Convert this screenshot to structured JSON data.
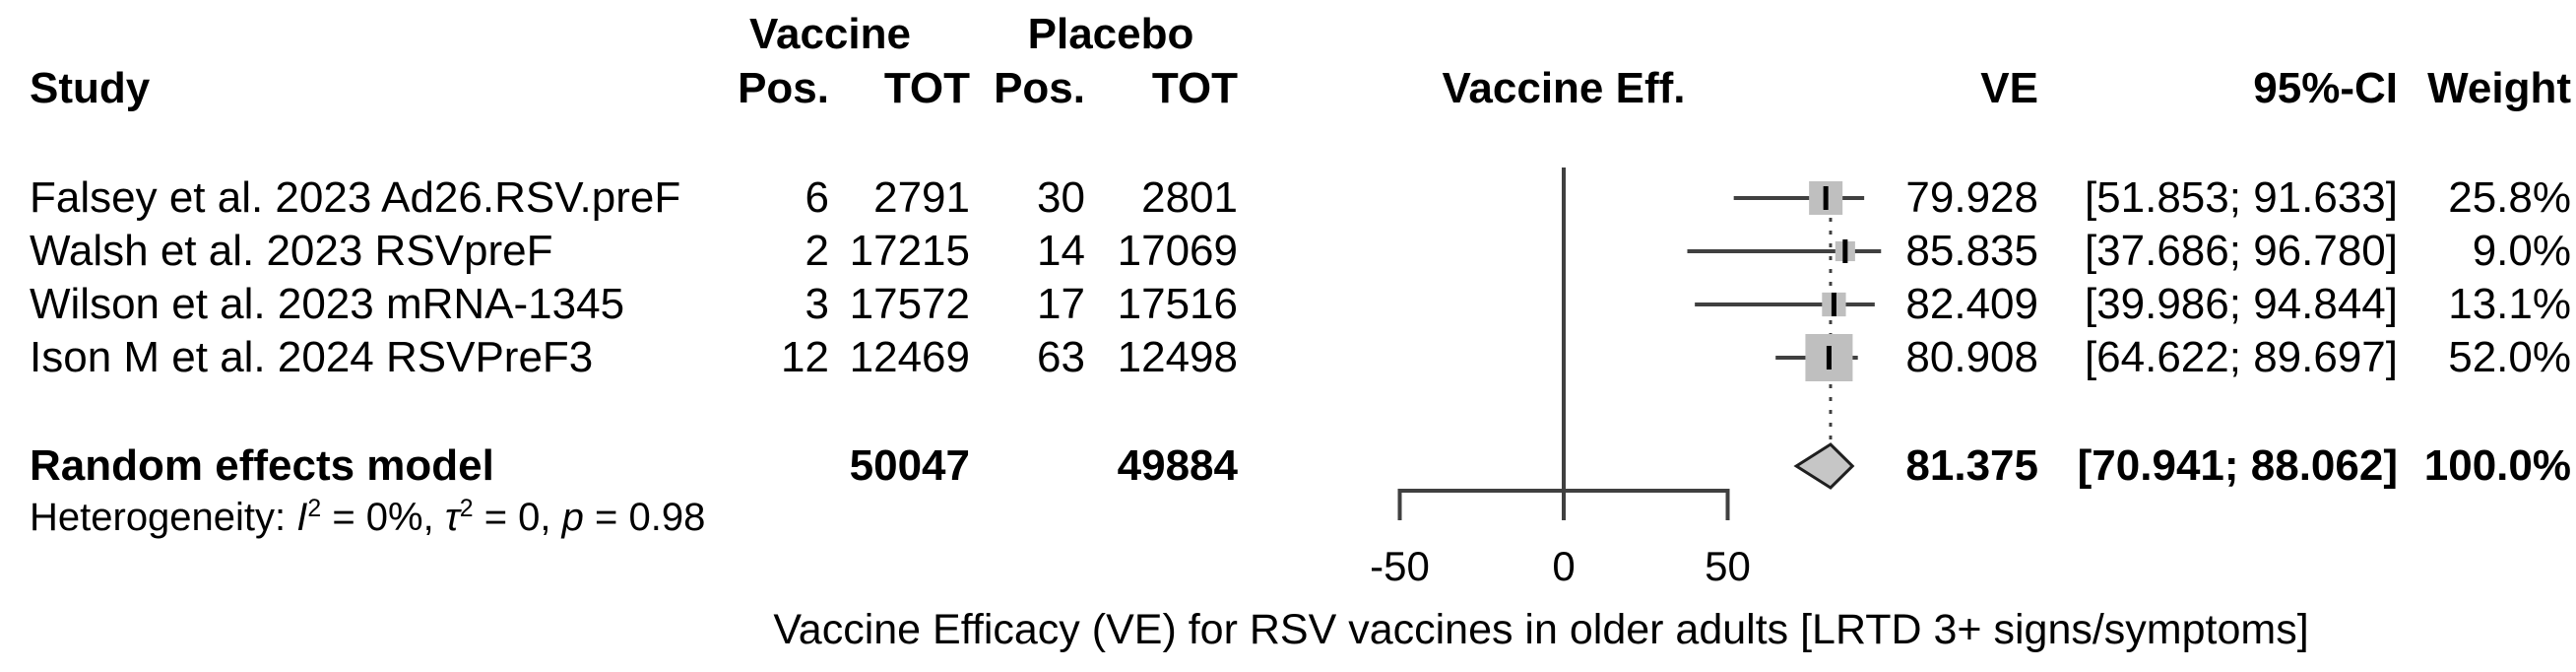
{
  "header": {
    "study": "Study",
    "vaccine_group": "Vaccine",
    "placebo_group": "Placebo",
    "pos": "Pos.",
    "tot": "TOT",
    "vaccine_eff": "Vaccine Eff.",
    "ve": "VE",
    "ci": "95%-CI",
    "weight": "Weight"
  },
  "studies": [
    {
      "name": "Falsey et al. 2023 Ad26.RSV.preF",
      "vaccine_pos": "6",
      "vaccine_tot": "2791",
      "placebo_pos": "30",
      "placebo_tot": "2801",
      "ve": 79.928,
      "ci_low": 51.853,
      "ci_high": 91.633,
      "ve_label": "79.928",
      "ci_label": "[51.853; 91.633]",
      "weight": 25.8,
      "weight_label": "25.8%"
    },
    {
      "name": "Walsh et al. 2023 RSVpreF",
      "vaccine_pos": "2",
      "vaccine_tot": "17215",
      "placebo_pos": "14",
      "placebo_tot": "17069",
      "ve": 85.835,
      "ci_low": 37.686,
      "ci_high": 96.78,
      "ve_label": "85.835",
      "ci_label": "[37.686; 96.780]",
      "weight": 9.0,
      "weight_label": "9.0%"
    },
    {
      "name": "Wilson et al. 2023 mRNA-1345",
      "vaccine_pos": "3",
      "vaccine_tot": "17572",
      "placebo_pos": "17",
      "placebo_tot": "17516",
      "ve": 82.409,
      "ci_low": 39.986,
      "ci_high": 94.844,
      "ve_label": "82.409",
      "ci_label": "[39.986; 94.844]",
      "weight": 13.1,
      "weight_label": "13.1%"
    },
    {
      "name": "Ison M et al. 2024 RSVPreF3",
      "vaccine_pos": "12",
      "vaccine_tot": "12469",
      "placebo_pos": "63",
      "placebo_tot": "12498",
      "ve": 80.908,
      "ci_low": 64.622,
      "ci_high": 89.697,
      "ve_label": "80.908",
      "ci_label": "[64.622; 89.697]",
      "weight": 52.0,
      "weight_label": "52.0%"
    }
  ],
  "summary": {
    "name": "Random effects model",
    "vaccine_pos": "",
    "vaccine_tot": "50047",
    "placebo_pos": "",
    "placebo_tot": "49884",
    "ve": 81.375,
    "ci_low": 70.941,
    "ci_high": 88.062,
    "ve_label": "81.375",
    "ci_label": "[70.941; 88.062]",
    "weight_label": "100.0%"
  },
  "heterogeneity": {
    "segments": [
      {
        "text": "Heterogeneity: "
      },
      {
        "text": "I",
        "italic": true
      },
      {
        "text": "2",
        "sup": true
      },
      {
        "text": " = 0%, "
      },
      {
        "text": "τ",
        "italic": true
      },
      {
        "text": "2",
        "sup": true
      },
      {
        "text": " = 0, "
      },
      {
        "text": "p",
        "italic": true
      },
      {
        "text": " = 0.98"
      }
    ]
  },
  "caption": "Vaccine Efficacy (VE) for RSV vaccines in older adults [LRTD 3+ signs/symptoms]",
  "colors": {
    "line": "#404040",
    "square_fill": "#bfbfbf",
    "diamond_fill": "#c6c6c6",
    "diamond_stroke": "#1f1f1f",
    "marker": "#000000",
    "text": "#000000"
  },
  "chart_data": {
    "type": "forest",
    "effect_measure": "VE",
    "axis_label": "Vaccine Eff.",
    "x_ticks": [
      -50,
      0,
      50
    ],
    "x_tick_labels": [
      "-50",
      "0",
      "50"
    ],
    "x_axis_range": [
      -50,
      50
    ],
    "reference_line": 0,
    "title": "Vaccine Efficacy (VE) for RSV vaccines in older adults [LRTD 3+ signs/symptoms]",
    "studies": [
      {
        "label": "Falsey et al. 2023 Ad26.RSV.preF",
        "events_vaccine": 6,
        "total_vaccine": 2791,
        "events_placebo": 30,
        "total_placebo": 2801,
        "ve": 79.928,
        "ci95": [
          51.853,
          91.633
        ],
        "weight_pct": 25.8
      },
      {
        "label": "Walsh et al. 2023 RSVpreF",
        "events_vaccine": 2,
        "total_vaccine": 17215,
        "events_placebo": 14,
        "total_placebo": 17069,
        "ve": 85.835,
        "ci95": [
          37.686,
          96.78
        ],
        "weight_pct": 9.0
      },
      {
        "label": "Wilson et al. 2023 mRNA-1345",
        "events_vaccine": 3,
        "total_vaccine": 17572,
        "events_placebo": 17,
        "total_placebo": 17516,
        "ve": 82.409,
        "ci95": [
          39.986,
          94.844
        ],
        "weight_pct": 13.1
      },
      {
        "label": "Ison M et al. 2024 RSVPreF3",
        "events_vaccine": 12,
        "total_vaccine": 12469,
        "events_placebo": 63,
        "total_placebo": 12498,
        "ve": 80.908,
        "ci95": [
          64.622,
          89.697
        ],
        "weight_pct": 52.0
      }
    ],
    "summary": {
      "label": "Random effects model",
      "total_vaccine": 50047,
      "total_placebo": 49884,
      "ve": 81.375,
      "ci95": [
        70.941,
        88.062
      ],
      "weight_pct": 100.0
    },
    "heterogeneity": {
      "I2": "0%",
      "tau2": 0,
      "p": 0.98
    }
  }
}
